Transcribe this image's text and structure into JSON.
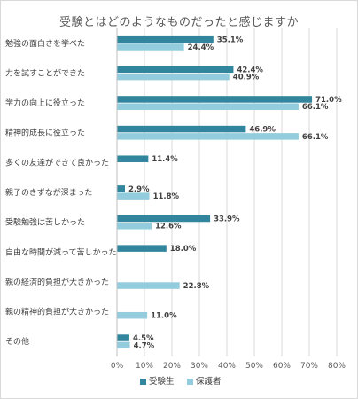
{
  "chart_data": {
    "type": "bar",
    "orientation": "horizontal",
    "title": "受験とはどのようなものだったと感じますか",
    "categories": [
      "勉強の面白さを学べた",
      "力を試すことができた",
      "学力の向上に役立った",
      "精神的成長に役立った",
      "多くの友達ができて良かった",
      "親子のきずなが深まった",
      "受験勉強は苦しかった",
      "自由な時間が減って苦しかった",
      "親の経済的負担が大きかった",
      "親の精神的負担が大きかった",
      "その他"
    ],
    "series": [
      {
        "name": "受験生",
        "color": "#31859c",
        "values": [
          35.1,
          42.4,
          71.0,
          46.9,
          11.4,
          2.9,
          33.9,
          18.0,
          null,
          null,
          4.5
        ],
        "labels": [
          "35.1%",
          "42.4%",
          "71.0%",
          "46.9%",
          "11.4%",
          "2.9%",
          "33.9%",
          "18.0%",
          "",
          "",
          "4.5%"
        ]
      },
      {
        "name": "保護者",
        "color": "#93cddd",
        "values": [
          24.4,
          40.9,
          66.1,
          66.1,
          null,
          11.8,
          12.6,
          null,
          22.8,
          11.0,
          4.7
        ],
        "labels": [
          "24.4%",
          "40.9%",
          "66.1%",
          "66.1%",
          "",
          "11.8%",
          "12.6%",
          "",
          "22.8%",
          "11.0%",
          "4.7%"
        ]
      }
    ],
    "xlim": [
      0,
      80
    ],
    "xticks": [
      0,
      10,
      20,
      30,
      40,
      50,
      60,
      70,
      80
    ],
    "xtick_labels": [
      "0%",
      "10%",
      "20%",
      "30%",
      "40%",
      "50%",
      "60%",
      "70%",
      "80%"
    ],
    "grid": true,
    "legend_position": "bottom"
  }
}
